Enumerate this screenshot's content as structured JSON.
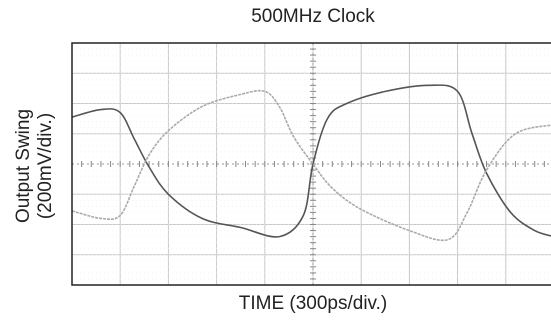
{
  "chart_data": {
    "type": "line",
    "title": "500MHz Clock",
    "xlabel": "TIME (300ps/div.)",
    "ylabel_line1": "Output Swing",
    "ylabel_line2": "(200mV/div.)",
    "grid": true,
    "x_divisions": 10,
    "y_divisions": 8,
    "xlim": [
      0,
      10
    ],
    "ylim": [
      -4,
      4
    ],
    "series": [
      {
        "x": [
          0,
          0.6,
          1.0,
          1.3,
          1.6,
          2.0,
          2.7,
          3.5,
          4.3,
          4.8,
          5.0,
          5.3,
          5.7,
          6.5,
          7.4,
          8.0,
          8.3,
          8.6,
          9.1,
          9.6,
          10.0
        ],
        "y": [
          1.55,
          1.8,
          1.7,
          0.8,
          -0.1,
          -1.0,
          -1.8,
          -2.1,
          -2.4,
          -1.7,
          0.0,
          1.5,
          2.0,
          2.4,
          2.6,
          2.4,
          1.0,
          -0.3,
          -1.6,
          -2.2,
          -2.4
        ]
      },
      {
        "x": [
          0,
          0.6,
          1.0,
          1.3,
          1.6,
          2.0,
          2.7,
          3.5,
          4.0,
          4.3,
          4.6,
          5.0,
          5.4,
          6.0,
          7.0,
          7.8,
          8.2,
          8.6,
          9.2,
          10.0
        ],
        "y": [
          -1.55,
          -1.8,
          -1.7,
          -0.7,
          0.3,
          1.1,
          1.9,
          2.3,
          2.4,
          1.9,
          0.9,
          0.0,
          -0.8,
          -1.5,
          -2.2,
          -2.5,
          -1.6,
          -0.2,
          1.0,
          1.3
        ]
      }
    ]
  }
}
